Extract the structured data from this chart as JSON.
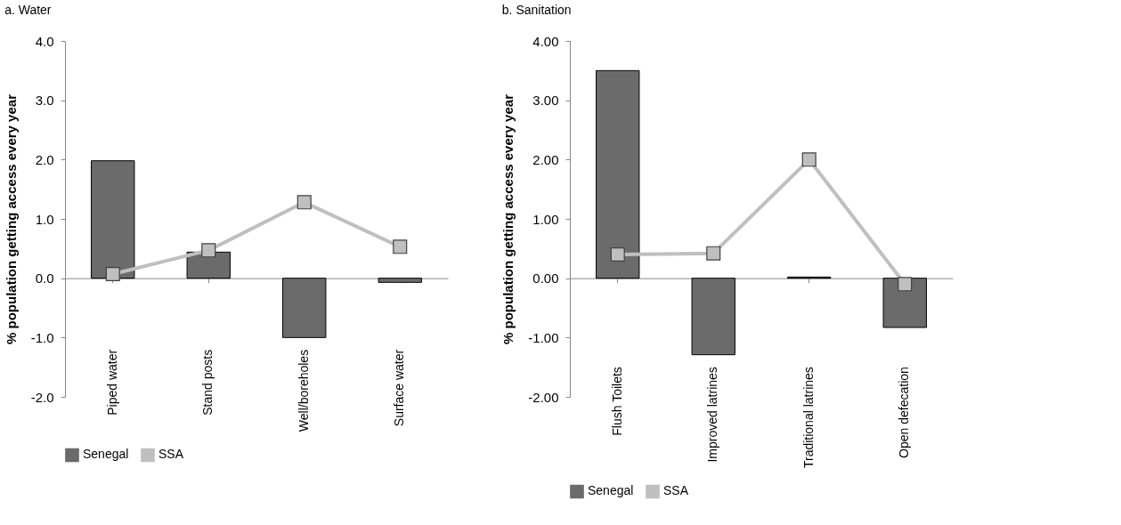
{
  "chart_data": [
    {
      "type": "bar",
      "title": "a. Water",
      "ylabel": "% population getting access every year",
      "categories": [
        "Piped water",
        "Stand posts",
        "Well/boreholes",
        "Surface water"
      ],
      "series": [
        {
          "name": "Senegal",
          "type": "bar",
          "color": "#6b6b6b",
          "values": [
            1.98,
            0.44,
            -1.0,
            -0.07
          ]
        },
        {
          "name": "SSA",
          "type": "line",
          "color": "#bfbfbf",
          "values": [
            0.07,
            0.47,
            1.28,
            0.53
          ]
        }
      ],
      "ylim": [
        -2,
        4
      ],
      "yticks": [
        {
          "value": -2,
          "label": "-2.0"
        },
        {
          "value": -1,
          "label": "-1.0"
        },
        {
          "value": 0,
          "label": "0.0"
        },
        {
          "value": 1,
          "label": "1.0"
        },
        {
          "value": 2,
          "label": "2.0"
        },
        {
          "value": 3,
          "label": "3.0"
        },
        {
          "value": 4,
          "label": "4.0"
        }
      ],
      "marker": "square",
      "legend": "bottom"
    },
    {
      "type": "bar",
      "title": "b. Sanitation",
      "ylabel": "% population getting access every year",
      "categories": [
        "Flush Toilets",
        "Improved latrines",
        "Traditional latrines",
        "Open defecation"
      ],
      "series": [
        {
          "name": "Senegal",
          "type": "bar",
          "color": "#6b6b6b",
          "values": [
            3.5,
            -1.29,
            0.02,
            -0.83
          ]
        },
        {
          "name": "SSA",
          "type": "line",
          "color": "#bfbfbf",
          "values": [
            0.4,
            0.42,
            2.0,
            -0.1
          ]
        }
      ],
      "ylim": [
        -2,
        4
      ],
      "yticks": [
        {
          "value": -2,
          "label": "-2.00"
        },
        {
          "value": -1,
          "label": "-1.00"
        },
        {
          "value": 0,
          "label": "0.00"
        },
        {
          "value": 1,
          "label": "1.00"
        },
        {
          "value": 2,
          "label": "2.00"
        },
        {
          "value": 3,
          "label": "3.00"
        },
        {
          "value": 4,
          "label": "4.00"
        }
      ],
      "marker": "square",
      "legend": "bottom"
    }
  ]
}
